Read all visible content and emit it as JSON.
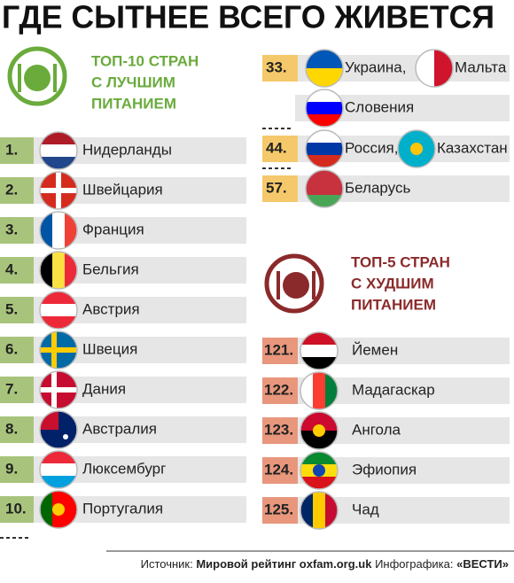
{
  "title": "ГДЕ СЫТНЕЕ ВСЕГО ЖИВЕТСЯ",
  "best": {
    "heading": [
      "ТОП-10 СТРАН",
      "С ЛУЧШИМ",
      "ПИТАНИЕМ"
    ],
    "rows": [
      {
        "rank": "1.",
        "country": "Нидерланды"
      },
      {
        "rank": "2.",
        "country": "Швейцария"
      },
      {
        "rank": "3.",
        "country": "Франция"
      },
      {
        "rank": "4.",
        "country": "Бельгия"
      },
      {
        "rank": "5.",
        "country": "Австрия"
      },
      {
        "rank": "6.",
        "country": "Швеция"
      },
      {
        "rank": "7.",
        "country": "Дания"
      },
      {
        "rank": "8.",
        "country": "Австралия"
      },
      {
        "rank": "9.",
        "country": "Люксембург"
      },
      {
        "rank": "10.",
        "country": "Португалия"
      }
    ]
  },
  "middle": {
    "rows": [
      {
        "rank": "33.",
        "countries": [
          "Украина,",
          "Мальта"
        ]
      },
      {
        "countries": [
          "Словения"
        ]
      },
      {
        "rank": "44.",
        "countries": [
          "Россия,",
          "Казахстан"
        ]
      },
      {
        "rank": "57.",
        "countries": [
          "Беларусь"
        ]
      }
    ]
  },
  "worst": {
    "heading": [
      "ТОП-5 СТРАН",
      "С ХУДШИМ",
      "ПИТАНИЕМ"
    ],
    "rows": [
      {
        "rank": "121.",
        "country": "Йемен"
      },
      {
        "rank": "122.",
        "country": "Мадагаскар"
      },
      {
        "rank": "123.",
        "country": "Ангола"
      },
      {
        "rank": "124.",
        "country": "Эфиопия"
      },
      {
        "rank": "125.",
        "country": "Чад"
      }
    ]
  },
  "footer": {
    "source_label": "Источник:",
    "source": "Мировой рейтинг oxfam.org.uk",
    "credit_label": "Инфографика:",
    "credit": "«ВЕСТИ»"
  }
}
